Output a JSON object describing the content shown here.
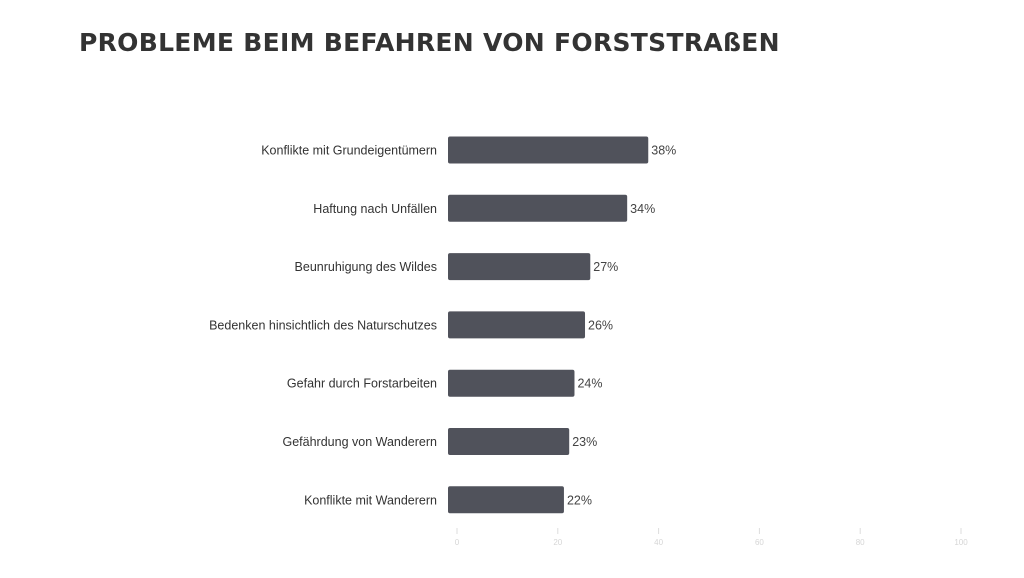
{
  "chart_data": {
    "type": "bar",
    "orientation": "horizontal",
    "title": "PROBLEME BEIM BEFAHREN VON FORSTSTRAßEN",
    "xlabel": "",
    "ylabel": "",
    "categories": [
      "Konflikte mit Grundeigentümern",
      "Haftung nach Unfällen",
      "Beunruhigung des Wildes",
      "Bedenken hinsichtlich des Naturschutzes",
      "Gefahr durch Forstarbeiten",
      "Gefährdung von Wanderern",
      "Konflikte mit Wanderern"
    ],
    "values": [
      38,
      34,
      27,
      26,
      24,
      23,
      22
    ],
    "value_labels": [
      "38%",
      "34%",
      "27%",
      "26%",
      "24%",
      "23%",
      "22%"
    ],
    "xlim": [
      0,
      100
    ],
    "xticks": [
      0,
      20,
      40,
      60,
      80,
      100
    ],
    "xtick_labels": [
      "0",
      "20",
      "40",
      "60",
      "80",
      "100"
    ],
    "grid": false,
    "legend": "none",
    "bar_color": "#50525b"
  }
}
